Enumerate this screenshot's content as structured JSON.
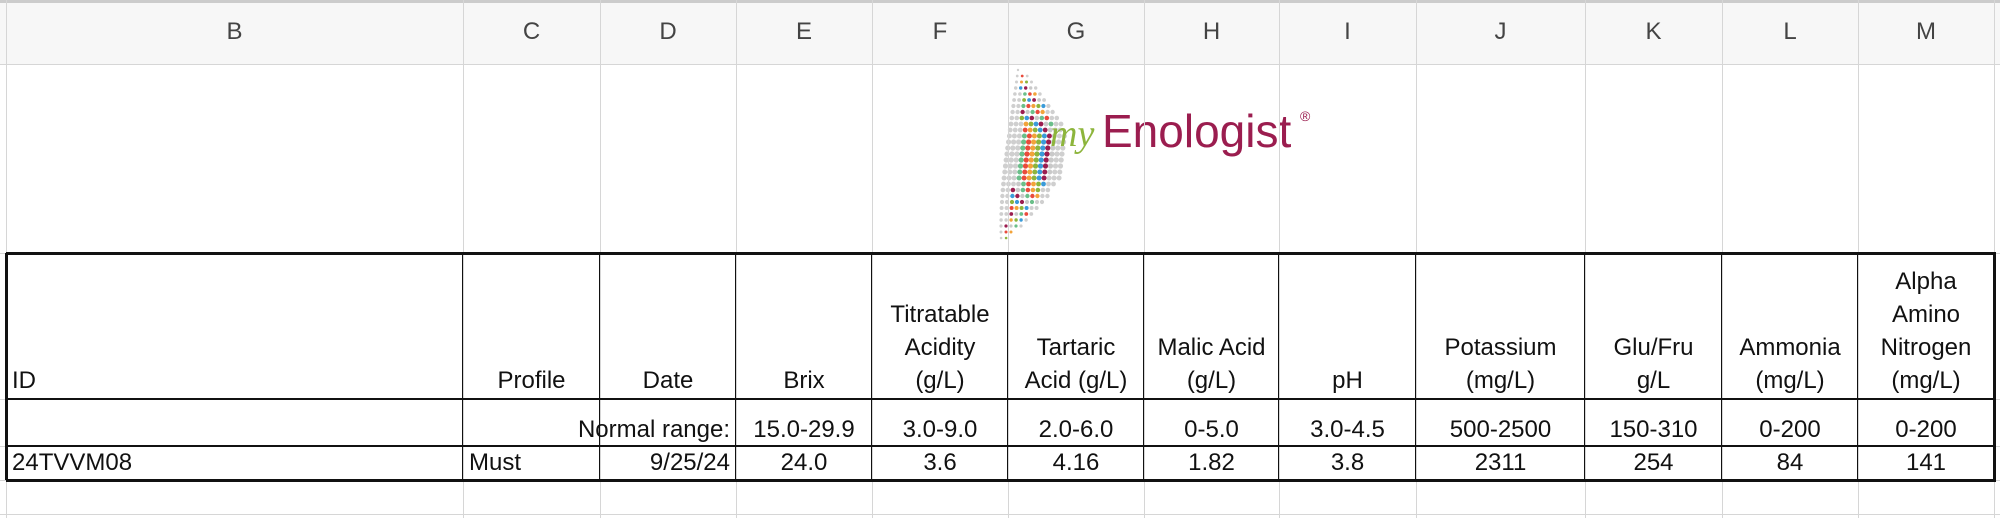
{
  "columns": [
    "B",
    "C",
    "D",
    "E",
    "F",
    "G",
    "H",
    "I",
    "J",
    "K",
    "L",
    "M"
  ],
  "logo": {
    "prefix": "my",
    "name": "Enologist",
    "mark": "®"
  },
  "table": {
    "headers": [
      [
        "ID"
      ],
      [
        "Profile"
      ],
      [
        "Date"
      ],
      [
        "Brix"
      ],
      [
        "Titratable",
        "Acidity",
        "(g/L)"
      ],
      [
        "Tartaric",
        "Acid (g/L)"
      ],
      [
        "Malic Acid",
        "(g/L)"
      ],
      [
        "pH"
      ],
      [
        "Potassium",
        "(mg/L)"
      ],
      [
        "Glu/Fru",
        "g/L"
      ],
      [
        "Ammonia",
        "(mg/L)"
      ],
      [
        "Alpha",
        "Amino",
        "Nitrogen",
        "(mg/L)"
      ]
    ],
    "normal_range_label": "Normal range:",
    "normal_ranges": [
      "15.0-29.9",
      "3.0-9.0",
      "2.0-6.0",
      "0-5.0",
      "3.0-4.5",
      "500-2500",
      "150-310",
      "0-200",
      "0-200"
    ],
    "rows": [
      [
        "24TVVM08",
        "Must",
        "9/25/24",
        "24.0",
        "3.6",
        "4.16",
        "1.82",
        "3.8",
        "2311",
        "254",
        "84",
        "141"
      ]
    ]
  }
}
